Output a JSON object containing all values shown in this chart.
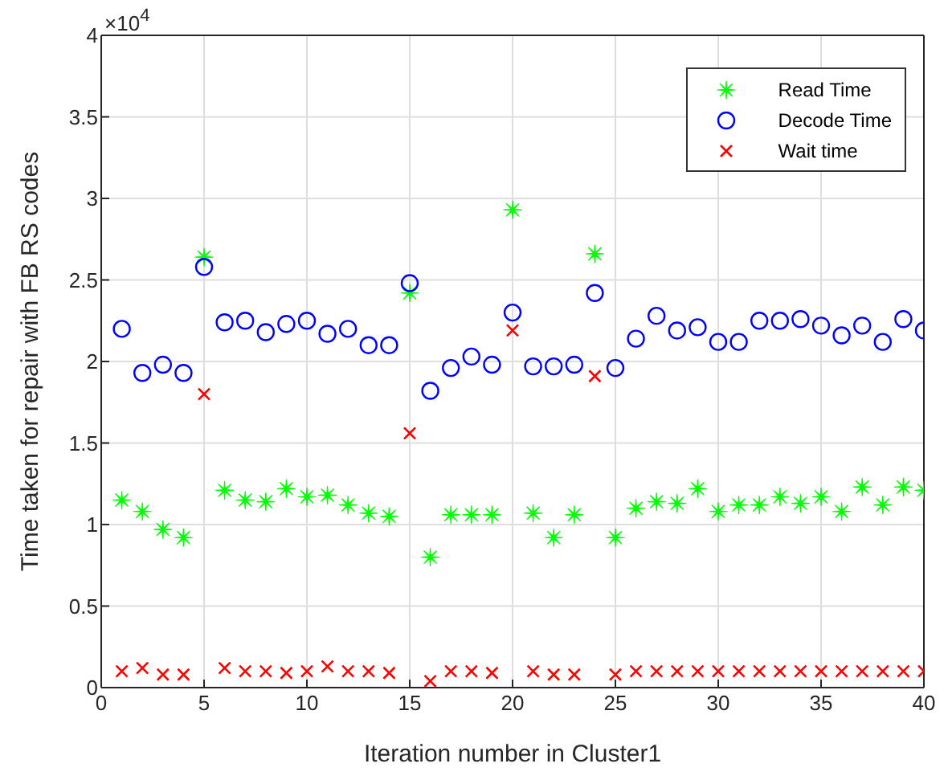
{
  "chart_data": {
    "type": "scatter",
    "xlabel": "Iteration number in Cluster1",
    "ylabel": "Time taken for repair with FB RS codes",
    "annotations": [
      "×10$^{4}$"
    ],
    "x": [
      1,
      2,
      3,
      4,
      5,
      6,
      7,
      8,
      9,
      10,
      11,
      12,
      13,
      14,
      15,
      16,
      17,
      18,
      19,
      20,
      21,
      22,
      23,
      24,
      25,
      26,
      27,
      28,
      29,
      30,
      31,
      32,
      33,
      34,
      35,
      36,
      37,
      38,
      39,
      40
    ],
    "series": [
      {
        "name": "Read Time",
        "color": "#00ff00",
        "marker": "star",
        "values": [
          1.15,
          1.08,
          0.97,
          0.92,
          2.64,
          1.21,
          1.15,
          1.14,
          1.22,
          1.17,
          1.18,
          1.12,
          1.07,
          1.05,
          2.42,
          0.8,
          1.06,
          1.06,
          1.06,
          2.93,
          1.07,
          0.92,
          1.06,
          2.66,
          0.92,
          1.1,
          1.14,
          1.13,
          1.22,
          1.08,
          1.12,
          1.12,
          1.17,
          1.13,
          1.17,
          1.08,
          1.23,
          1.12,
          1.23,
          1.21
        ]
      },
      {
        "name": "Decode Time",
        "color": "#0000ff",
        "marker": "circle",
        "values": [
          2.2,
          1.93,
          1.98,
          1.93,
          2.58,
          2.24,
          2.25,
          2.18,
          2.23,
          2.25,
          2.17,
          2.2,
          2.1,
          2.1,
          2.48,
          1.82,
          1.96,
          2.03,
          1.98,
          2.3,
          1.97,
          1.97,
          1.98,
          2.42,
          1.96,
          2.14,
          2.28,
          2.19,
          2.21,
          2.12,
          2.12,
          2.25,
          2.25,
          2.26,
          2.22,
          2.16,
          2.22,
          2.12,
          2.26,
          2.19
        ]
      },
      {
        "name": "Wait time",
        "color": "#ff0000",
        "marker": "cross",
        "values": [
          0.1,
          0.12,
          0.08,
          0.08,
          1.8,
          0.12,
          0.1,
          0.1,
          0.09,
          0.1,
          0.13,
          0.1,
          0.1,
          0.09,
          1.56,
          0.04,
          0.1,
          0.1,
          0.09,
          2.19,
          0.1,
          0.08,
          0.08,
          1.91,
          0.08,
          0.1,
          0.1,
          0.1,
          0.1,
          0.1,
          0.1,
          0.1,
          0.1,
          0.1,
          0.1,
          0.1,
          0.1,
          0.1,
          0.1,
          0.1
        ]
      }
    ],
    "xlim": [
      0,
      40
    ],
    "xticks": [
      0,
      5,
      10,
      15,
      20,
      25,
      30,
      35,
      40
    ],
    "ylim": [
      0,
      4
    ],
    "yticks": [
      0,
      0.5,
      1,
      1.5,
      2,
      2.5,
      3,
      3.5,
      4
    ],
    "grid": true,
    "legend": "top right"
  }
}
